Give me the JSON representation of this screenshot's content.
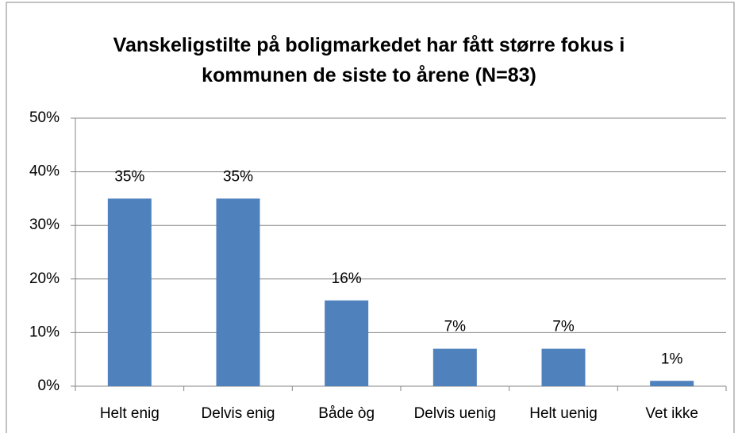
{
  "chart_data": {
    "type": "bar",
    "title": "Vanskeligstilte på boligmarkedet har fått større fokus i kommunen de siste to årene (N=83)",
    "categories": [
      "Helt enig",
      "Delvis enig",
      "Både òg",
      "Delvis uenig",
      "Helt uenig",
      "Vet ikke"
    ],
    "values": [
      35,
      35,
      16,
      7,
      7,
      1
    ],
    "value_labels": [
      "35%",
      "35%",
      "16%",
      "7%",
      "7%",
      "1%"
    ],
    "color": "#4f81bd",
    "ylim": [
      0,
      50
    ],
    "yticks": [
      {
        "value": 0,
        "label": "0%"
      },
      {
        "value": 10,
        "label": "10%"
      },
      {
        "value": 20,
        "label": "20%"
      },
      {
        "value": 30,
        "label": "30%"
      },
      {
        "value": 40,
        "label": "40%"
      },
      {
        "value": 50,
        "label": "50%"
      }
    ],
    "grid": true
  }
}
